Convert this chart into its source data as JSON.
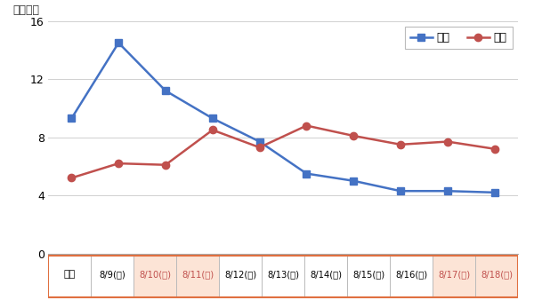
{
  "x_labels": [
    "8/9(金)",
    "8/10(土)",
    "8/11(日)",
    "8/12(月)",
    "8/13(火)",
    "8/14(水)",
    "8/15(木)",
    "8/16(金)",
    "8/17(土)",
    "8/18(日)"
  ],
  "kudari": [
    9.3,
    14.5,
    11.2,
    9.3,
    7.7,
    5.5,
    5.0,
    4.3,
    4.3,
    4.2
  ],
  "nobori": [
    5.2,
    6.2,
    6.1,
    8.5,
    7.3,
    8.8,
    8.1,
    7.5,
    7.7,
    7.2
  ],
  "kudari_color": "#4472c4",
  "nobori_color": "#c0504d",
  "ylim_max": 16,
  "ylim_min": 0,
  "yticks": [
    0,
    4,
    8,
    12,
    16
  ],
  "ylabel": "（万席）",
  "legend_kudari": "下り",
  "legend_nobori": "上り",
  "row_label": "本年",
  "weekend_bg_color": "#fce4d6",
  "weekday_bg_color": "#ffffff",
  "header_bg_color": "#ffffff",
  "bg_color": "#ffffff",
  "table_border_color": "#e07040",
  "table_inner_color": "#bbbbbb",
  "weekend_indices": [
    1,
    2,
    8,
    9
  ],
  "weekend_text_color": "#c0504d",
  "weekday_text_color": "#000000"
}
